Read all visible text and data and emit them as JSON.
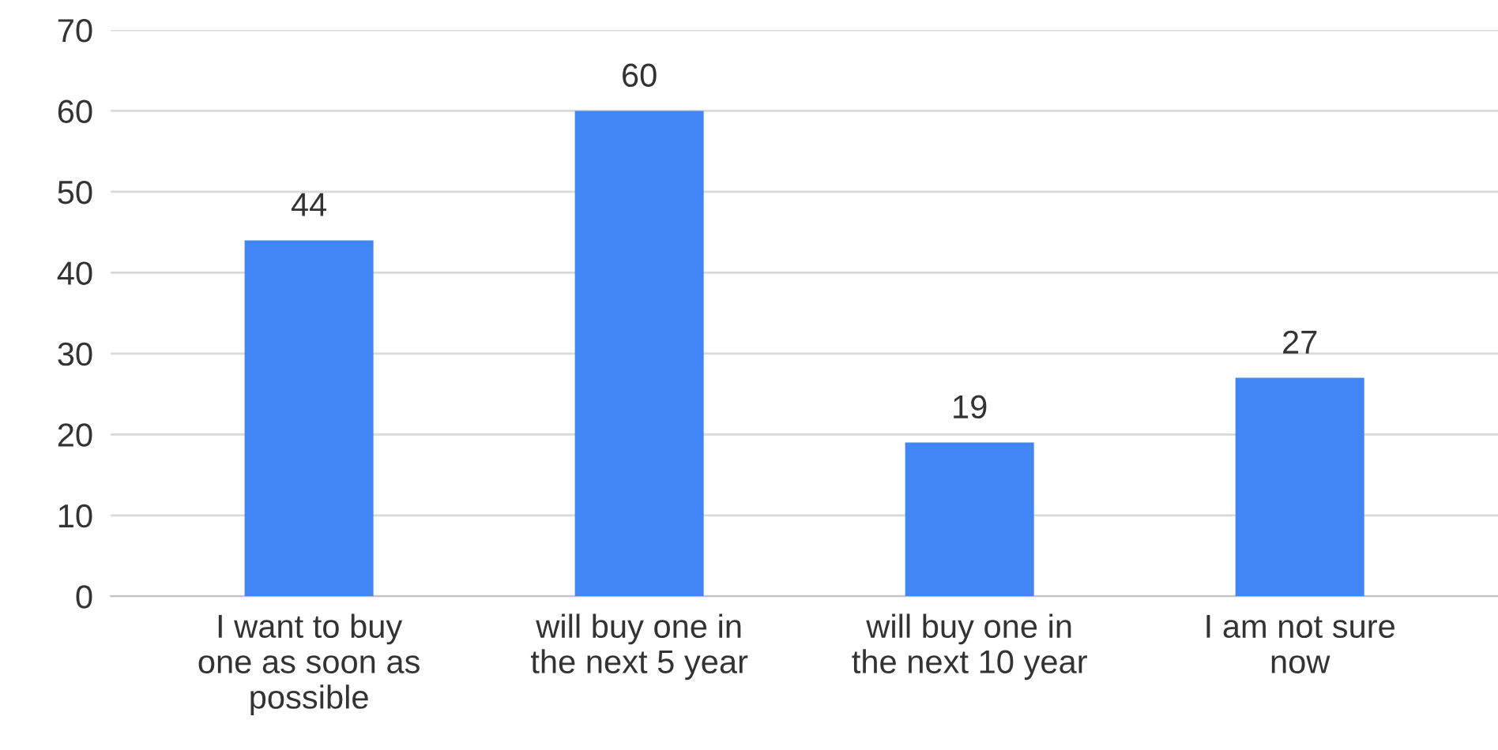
{
  "chart_data": {
    "type": "bar",
    "categories": [
      "I want to buy one as soon as possible",
      "will buy one in the next 5 year",
      "will buy one in the next 10 year",
      "I am not sure now"
    ],
    "values": [
      44,
      60,
      19,
      27
    ],
    "color": "#4285f4",
    "ylim": [
      0,
      70
    ],
    "yticks": [
      0,
      10,
      20,
      30,
      40,
      50,
      60,
      70
    ],
    "grid": "y",
    "data_labels": true
  }
}
